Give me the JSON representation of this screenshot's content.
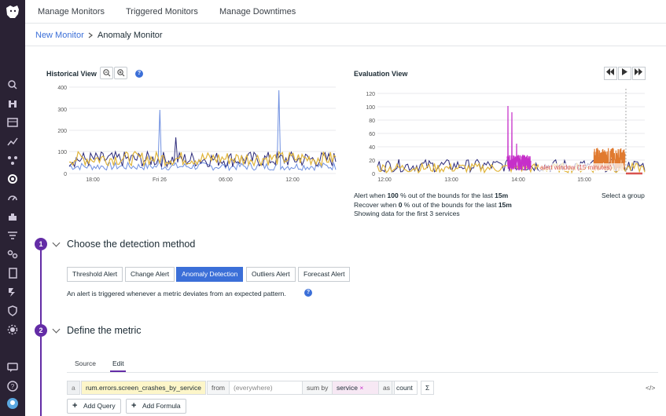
{
  "topnav": {
    "tabs": [
      "Manage Monitors",
      "Triggered Monitors",
      "Manage Downtimes"
    ]
  },
  "breadcrumb": {
    "parent": "New Monitor",
    "current": "Anomaly Monitor"
  },
  "historical": {
    "title": "Historical View",
    "help": "?",
    "yticks": [
      "400",
      "300",
      "200",
      "100",
      "0"
    ],
    "xticks": [
      "18:00",
      "Fri 26",
      "06:00",
      "12:00"
    ]
  },
  "evaluation": {
    "title": "Evaluation View",
    "yticks": [
      "120",
      "100",
      "80",
      "60",
      "40",
      "20",
      "0"
    ],
    "xticks": [
      "12:00",
      "13:00",
      "14:00",
      "15:00"
    ],
    "alert_window_label": "alert window (15 minutes)",
    "alert_line": {
      "pre": "Alert when ",
      "pct": "100",
      "mid": " % out of the bounds for the last ",
      "dur": "15m"
    },
    "recover_line": {
      "pre": "Recover when ",
      "pct": "0",
      "mid": " % out of the bounds for the last ",
      "dur": "15m"
    },
    "showing": "Showing data for the first 3 services",
    "select_group": "Select a group"
  },
  "step1": {
    "number": "1",
    "title": "Choose the detection method",
    "options": [
      "Threshold Alert",
      "Change Alert",
      "Anomaly Detection",
      "Outliers Alert",
      "Forecast Alert"
    ],
    "active": "Anomaly Detection",
    "description": "An alert is triggered whenever a metric deviates from an expected pattern.",
    "help": "?"
  },
  "step2": {
    "number": "2",
    "title": "Define the metric",
    "tabs": [
      "Source",
      "Edit"
    ],
    "active_tab": "Edit",
    "query": {
      "letter": "a",
      "metric": "rum.errors.screen_crashes_by_service",
      "from_label": "from",
      "from_value": "(everywhere)",
      "sum_by_label": "sum by",
      "sum_by_value": "service",
      "remove": "×",
      "as_label": "as",
      "as_value": "count",
      "sigma": "Σ",
      "code": "</>"
    },
    "add_query": "Add Query",
    "add_formula": "Add Formula",
    "plus": "+"
  },
  "colors": {
    "brand": "#632ca6",
    "accent": "#3b6fd8",
    "sidebar": "#2a2234",
    "series_navy": "#2c2a7a",
    "series_gold": "#e0b43a",
    "series_blue": "#6e8fe0",
    "series_magenta": "#c62fc9",
    "series_orange": "#e07a2f",
    "alert_red": "#d9534f"
  },
  "icons": [
    "logo-dog-icon",
    "search-icon",
    "binoculars-icon",
    "dashboard-icon",
    "infrastructure-icon",
    "apm-icon",
    "monitors-icon",
    "rum-icon",
    "integrations-icon",
    "logs-icon",
    "link-icon",
    "notebook-icon",
    "synthetics-icon",
    "security-icon",
    "settings-icon",
    "chat-icon",
    "help-icon",
    "user-avatar-icon"
  ]
}
